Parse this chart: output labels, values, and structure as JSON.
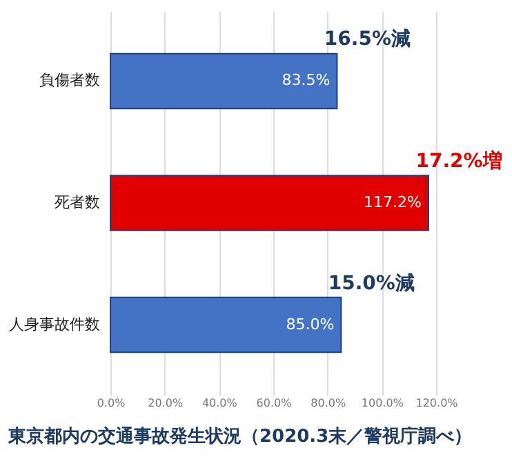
{
  "chart_data": {
    "type": "bar",
    "orientation": "horizontal",
    "title": "東京都内の交通事故発生状況（2020.3末／警視庁調べ）",
    "categories": [
      "負傷者数",
      "死者数",
      "人身事故件数"
    ],
    "values": [
      83.5,
      117.2,
      85.0
    ],
    "colors": [
      "#4472c4",
      "#e00000",
      "#4472c4"
    ],
    "value_labels": [
      "83.5%",
      "117.2%",
      "85.0%"
    ],
    "xlim": [
      0,
      120
    ],
    "xticks": [
      {
        "value": 0,
        "label": "0.0%"
      },
      {
        "value": 20,
        "label": "20.0%"
      },
      {
        "value": 40,
        "label": "40.0%"
      },
      {
        "value": 60,
        "label": "60.0%"
      },
      {
        "value": 80,
        "label": "80.0%"
      },
      {
        "value": 100,
        "label": "100.0%"
      },
      {
        "value": 120,
        "label": "120.0%"
      }
    ],
    "grid": "x",
    "annotations": [
      {
        "text": "16.5%減",
        "x": 83.5,
        "y": "負傷者数"
      },
      {
        "text": "17.2%増",
        "x": 117.2,
        "y": "死者数"
      },
      {
        "text": "15.0%減",
        "x": 85.0,
        "y": "人身事故件数"
      }
    ]
  }
}
